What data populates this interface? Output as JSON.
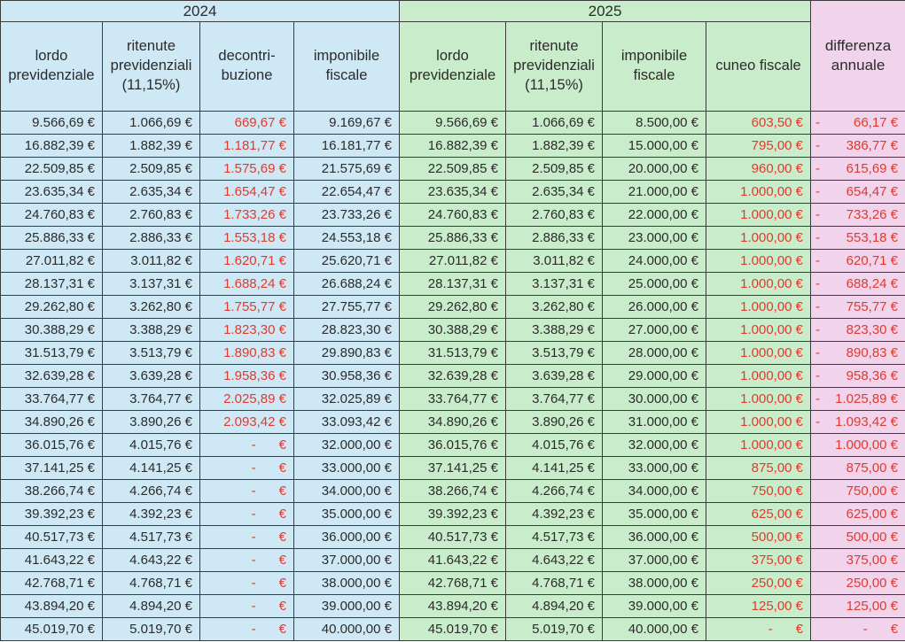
{
  "table": {
    "year_2024": "2024",
    "year_2025": "2025",
    "diff_header": "differenza\nannuale",
    "euro_sign": "€",
    "columns": [
      {
        "label": "lordo\nprevidenziale",
        "group": "2024",
        "color_class": "bg-blue",
        "red": false
      },
      {
        "label": "ritenute\nprevidenziali\n(11,15%)",
        "group": "2024",
        "color_class": "bg-blue",
        "red": false
      },
      {
        "label": "decontri-\nbuzione",
        "group": "2024",
        "color_class": "bg-blue",
        "red": true
      },
      {
        "label": "imponibile\nfiscale",
        "group": "2024",
        "color_class": "bg-blue",
        "red": false
      },
      {
        "label": "lordo\nprevidenziale",
        "group": "2025",
        "color_class": "bg-green",
        "red": false
      },
      {
        "label": "ritenute\nprevidenziali\n(11,15%)",
        "group": "2025",
        "color_class": "bg-green",
        "red": false
      },
      {
        "label": "imponibile\nfiscale",
        "group": "2025",
        "color_class": "bg-green",
        "red": false
      },
      {
        "label": "cuneo fiscale",
        "group": "2025",
        "color_class": "bg-green",
        "red": true
      },
      {
        "label": "differenza annuale",
        "group": "diff",
        "color_class": "bg-pink",
        "red": true
      }
    ],
    "rows": [
      [
        "9.566,69",
        "1.066,69",
        "669,67",
        "9.169,67",
        "9.566,69",
        "1.066,69",
        "8.500,00",
        "603,50",
        "-66,17"
      ],
      [
        "16.882,39",
        "1.882,39",
        "1.181,77",
        "16.181,77",
        "16.882,39",
        "1.882,39",
        "15.000,00",
        "795,00",
        "-386,77"
      ],
      [
        "22.509,85",
        "2.509,85",
        "1.575,69",
        "21.575,69",
        "22.509,85",
        "2.509,85",
        "20.000,00",
        "960,00",
        "-615,69"
      ],
      [
        "23.635,34",
        "2.635,34",
        "1.654,47",
        "22.654,47",
        "23.635,34",
        "2.635,34",
        "21.000,00",
        "1.000,00",
        "-654,47"
      ],
      [
        "24.760,83",
        "2.760,83",
        "1.733,26",
        "23.733,26",
        "24.760,83",
        "2.760,83",
        "22.000,00",
        "1.000,00",
        "-733,26"
      ],
      [
        "25.886,33",
        "2.886,33",
        "1.553,18",
        "24.553,18",
        "25.886,33",
        "2.886,33",
        "23.000,00",
        "1.000,00",
        "-553,18"
      ],
      [
        "27.011,82",
        "3.011,82",
        "1.620,71",
        "25.620,71",
        "27.011,82",
        "3.011,82",
        "24.000,00",
        "1.000,00",
        "-620,71"
      ],
      [
        "28.137,31",
        "3.137,31",
        "1.688,24",
        "26.688,24",
        "28.137,31",
        "3.137,31",
        "25.000,00",
        "1.000,00",
        "-688,24"
      ],
      [
        "29.262,80",
        "3.262,80",
        "1.755,77",
        "27.755,77",
        "29.262,80",
        "3.262,80",
        "26.000,00",
        "1.000,00",
        "-755,77"
      ],
      [
        "30.388,29",
        "3.388,29",
        "1.823,30",
        "28.823,30",
        "30.388,29",
        "3.388,29",
        "27.000,00",
        "1.000,00",
        "-823,30"
      ],
      [
        "31.513,79",
        "3.513,79",
        "1.890,83",
        "29.890,83",
        "31.513,79",
        "3.513,79",
        "28.000,00",
        "1.000,00",
        "-890,83"
      ],
      [
        "32.639,28",
        "3.639,28",
        "1.958,36",
        "30.958,36",
        "32.639,28",
        "3.639,28",
        "29.000,00",
        "1.000,00",
        "-958,36"
      ],
      [
        "33.764,77",
        "3.764,77",
        "2.025,89",
        "32.025,89",
        "33.764,77",
        "3.764,77",
        "30.000,00",
        "1.000,00",
        "-1.025,89"
      ],
      [
        "34.890,26",
        "3.890,26",
        "2.093,42",
        "33.093,42",
        "34.890,26",
        "3.890,26",
        "31.000,00",
        "1.000,00",
        "-1.093,42"
      ],
      [
        "36.015,76",
        "4.015,76",
        "-",
        "32.000,00",
        "36.015,76",
        "4.015,76",
        "32.000,00",
        "1.000,00",
        "1.000,00"
      ],
      [
        "37.141,25",
        "4.141,25",
        "-",
        "33.000,00",
        "37.141,25",
        "4.141,25",
        "33.000,00",
        "875,00",
        "875,00"
      ],
      [
        "38.266,74",
        "4.266,74",
        "-",
        "34.000,00",
        "38.266,74",
        "4.266,74",
        "34.000,00",
        "750,00",
        "750,00"
      ],
      [
        "39.392,23",
        "4.392,23",
        "-",
        "35.000,00",
        "39.392,23",
        "4.392,23",
        "35.000,00",
        "625,00",
        "625,00"
      ],
      [
        "40.517,73",
        "4.517,73",
        "-",
        "36.000,00",
        "40.517,73",
        "4.517,73",
        "36.000,00",
        "500,00",
        "500,00"
      ],
      [
        "41.643,22",
        "4.643,22",
        "-",
        "37.000,00",
        "41.643,22",
        "4.643,22",
        "37.000,00",
        "375,00",
        "375,00"
      ],
      [
        "42.768,71",
        "4.768,71",
        "-",
        "38.000,00",
        "42.768,71",
        "4.768,71",
        "38.000,00",
        "250,00",
        "250,00"
      ],
      [
        "43.894,20",
        "4.894,20",
        "-",
        "39.000,00",
        "43.894,20",
        "4.894,20",
        "39.000,00",
        "125,00",
        "125,00"
      ],
      [
        "45.019,70",
        "5.019,70",
        "-",
        "40.000,00",
        "45.019,70",
        "5.019,70",
        "40.000,00",
        "-",
        "-"
      ]
    ]
  },
  "colors": {
    "group_2024_bg": "#cfe8f6",
    "group_2025_bg": "#c9edca",
    "diff_bg": "#f1d3ec",
    "border": "#3c3c3c",
    "text": "#2b2b2b",
    "negative_red": "#e03a2c"
  }
}
